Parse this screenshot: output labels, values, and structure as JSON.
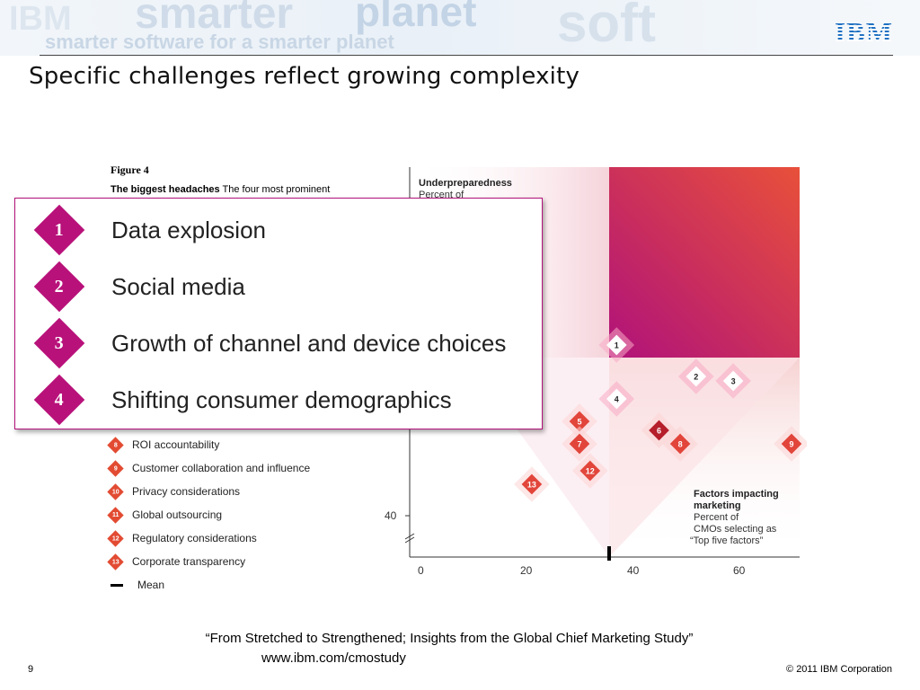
{
  "header": {
    "watermark_words": [
      "smarter",
      "planet",
      "soft",
      "smarter software for a smarter planet",
      "IBM"
    ],
    "logo_text": "IBM"
  },
  "slide": {
    "title": "Specific challenges reflect growing complexity",
    "page_number": "9",
    "copyright": "© 2011 IBM Corporation",
    "citation_line1": "“From Stretched to Strengthened; Insights from the Global Chief Marketing Study”",
    "citation_line2": "www.ibm.com/cmostudy"
  },
  "figure": {
    "caption": "Figure 4",
    "subtitle_bold": "The biggest headaches",
    "subtitle_rest": "The four most prominent",
    "legend": [
      {
        "num": "8",
        "label": "ROI accountability"
      },
      {
        "num": "9",
        "label": "Customer collaboration and influence"
      },
      {
        "num": "10",
        "label": "Privacy considerations"
      },
      {
        "num": "11",
        "label": "Global outsourcing"
      },
      {
        "num": "12",
        "label": "Regulatory considerations"
      },
      {
        "num": "13",
        "label": "Corporate transparency"
      }
    ],
    "mean_label": "Mean",
    "accent_color": "#e24b32",
    "highlight_color": "#b8117a"
  },
  "callout": {
    "items": [
      {
        "num": "1",
        "label": "Data explosion"
      },
      {
        "num": "2",
        "label": "Social media"
      },
      {
        "num": "3",
        "label": "Growth of channel and device choices"
      },
      {
        "num": "4",
        "label": "Shifting consumer demographics"
      }
    ]
  },
  "chart_data": {
    "type": "scatter",
    "y_axis_title": "Underpreparedness",
    "y_axis_subtitle": "Percent of",
    "x_axis_title": "Factors impacting marketing",
    "x_axis_subtitle_lines": [
      "Percent of",
      "CMOs selecting as",
      "“Top five factors”"
    ],
    "x_ticks": [
      "0",
      "20",
      "40",
      "60"
    ],
    "y_ticks": [
      "40"
    ],
    "x_mean": 35,
    "points": [
      {
        "id": "1",
        "x": 37,
        "y": 78
      },
      {
        "id": "2",
        "x": 52,
        "y": 71
      },
      {
        "id": "3",
        "x": 59,
        "y": 70
      },
      {
        "id": "4",
        "x": 37,
        "y": 66
      },
      {
        "id": "5",
        "x": 30,
        "y": 61
      },
      {
        "id": "6",
        "x": 45,
        "y": 59
      },
      {
        "id": "7",
        "x": 30,
        "y": 56
      },
      {
        "id": "8",
        "x": 49,
        "y": 56
      },
      {
        "id": "9",
        "x": 70,
        "y": 56
      },
      {
        "id": "12",
        "x": 32,
        "y": 50
      },
      {
        "id": "13",
        "x": 21,
        "y": 47
      }
    ]
  }
}
